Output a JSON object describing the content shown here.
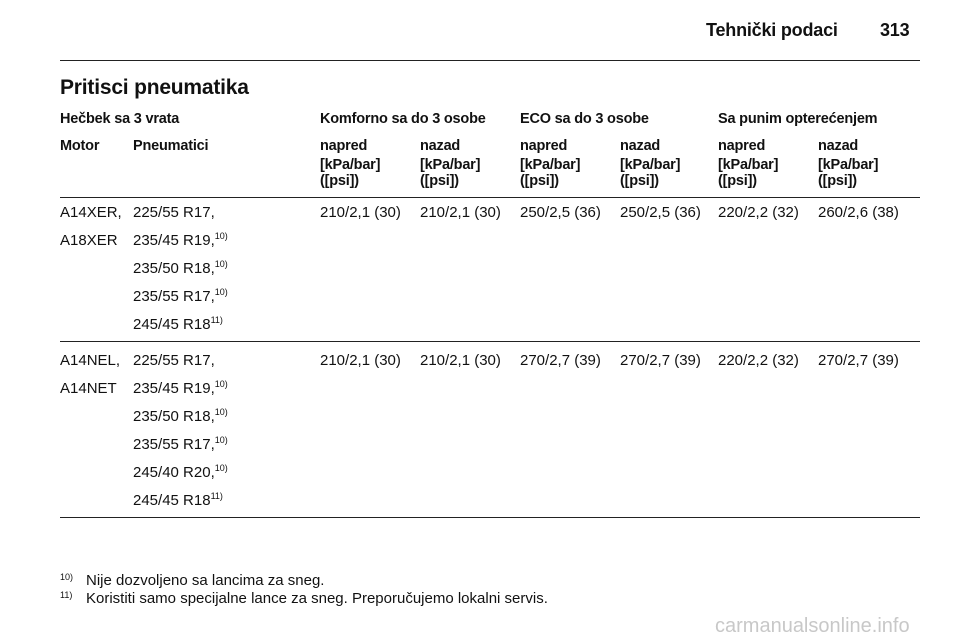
{
  "header": {
    "section": "Tehnički podaci",
    "page": "313"
  },
  "title": "Pritisci pneumatika",
  "table": {
    "group_label": "Hečbek sa 3 vrata",
    "groups": [
      "Komforno sa do 3 osobe",
      "ECO sa do 3 osobe",
      "Sa punim opterećenjem"
    ],
    "columns": [
      "Motor",
      "Pneumatici",
      "napred",
      "nazad",
      "napred",
      "nazad",
      "napred",
      "nazad"
    ],
    "units": [
      {
        "pressure": "[kPa/bar]",
        "psi": "([psi])"
      },
      {
        "pressure": "[kPa/bar]",
        "psi": "([psi])"
      },
      {
        "pressure": "[kPa/bar]",
        "psi": "([psi])"
      },
      {
        "pressure": "[kPa/bar]",
        "psi": "([psi])"
      },
      {
        "pressure": "[kPa/bar]",
        "psi": "([psi])"
      },
      {
        "pressure": "[kPa/bar]",
        "psi": "([psi])"
      }
    ],
    "rows": [
      {
        "motor": [
          "A14XER,",
          "A18XER"
        ],
        "tires": [
          {
            "text": "225/55 R17,"
          },
          {
            "text": "235/45 R19,",
            "note": "10)"
          },
          {
            "text": "235/50 R18,",
            "note": "10)"
          },
          {
            "text": "235/55 R17,",
            "note": "10)"
          },
          {
            "text": "245/45 R18",
            "note": "11)"
          }
        ],
        "values": [
          "210/2,1 (30)",
          "210/2,1 (30)",
          "250/2,5 (36)",
          "250/2,5 (36)",
          "220/2,2 (32)",
          "260/2,6 (38)"
        ]
      },
      {
        "motor": [
          "A14NEL,",
          "A14NET"
        ],
        "tires": [
          {
            "text": "225/55 R17,"
          },
          {
            "text": "235/45 R19,",
            "note": "10)"
          },
          {
            "text": "235/50 R18,",
            "note": "10)"
          },
          {
            "text": "235/55 R17,",
            "note": "10)"
          },
          {
            "text": "245/40 R20,",
            "note": "10)"
          },
          {
            "text": "245/45 R18",
            "note": "11)"
          }
        ],
        "values": [
          "210/2,1 (30)",
          "210/2,1 (30)",
          "270/2,7 (39)",
          "270/2,7 (39)",
          "220/2,2 (32)",
          "270/2,7 (39)"
        ]
      }
    ]
  },
  "footnotes": [
    {
      "mark": "10)",
      "text": "Nije dozvoljeno sa lancima za sneg."
    },
    {
      "mark": "11)",
      "text": "Koristiti samo specijalne lance za sneg. Preporučujemo lokalni servis."
    }
  ],
  "watermark": "carmanualsonline.info"
}
